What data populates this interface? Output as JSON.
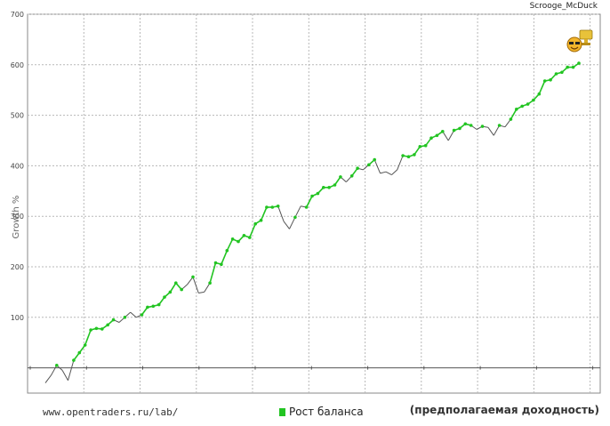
{
  "header": {
    "user_label": "Scrooge_McDuck"
  },
  "footer": {
    "url": "www.opentraders.ru/lab/",
    "legend_label": "Рост баланса",
    "note": "(предполагаемая доходность)"
  },
  "colors": {
    "series": "#22c422",
    "line": "#555555",
    "grid": "#b8b8b8",
    "axis": "#555555"
  },
  "chart_data": {
    "type": "line",
    "ylabel": "Growth %",
    "xlabel": "",
    "ylim": [
      -50,
      700
    ],
    "yticks": [
      100,
      200,
      300,
      400,
      500,
      600,
      700
    ],
    "grid": true,
    "legend": "bottom-center",
    "series": [
      {
        "name": "Рост баланса",
        "y": [
          -30,
          -15,
          5,
          -5,
          -25,
          15,
          30,
          45,
          75,
          78,
          77,
          85,
          95,
          90,
          100,
          110,
          100,
          105,
          120,
          122,
          125,
          140,
          150,
          168,
          155,
          165,
          180,
          148,
          150,
          168,
          208,
          205,
          232,
          255,
          250,
          262,
          258,
          285,
          292,
          318,
          318,
          320,
          290,
          275,
          298,
          320,
          318,
          340,
          345,
          357,
          357,
          362,
          378,
          368,
          380,
          395,
          392,
          402,
          412,
          385,
          388,
          382,
          392,
          420,
          418,
          422,
          438,
          440,
          455,
          460,
          468,
          450,
          470,
          474,
          483,
          480,
          472,
          478,
          476,
          460,
          480,
          477,
          492,
          512,
          518,
          522,
          530,
          542,
          568,
          570,
          582,
          585,
          595,
          595,
          603
        ],
        "markers": [
          2,
          5,
          6,
          7,
          8,
          9,
          10,
          11,
          12,
          14,
          17,
          18,
          19,
          20,
          21,
          22,
          23,
          24,
          26,
          29,
          30,
          31,
          32,
          33,
          34,
          35,
          36,
          37,
          38,
          39,
          40,
          41,
          44,
          46,
          47,
          48,
          49,
          50,
          51,
          52,
          54,
          55,
          57,
          58,
          63,
          64,
          65,
          66,
          67,
          68,
          69,
          70,
          72,
          73,
          74,
          75,
          77,
          80,
          82,
          83,
          84,
          85,
          86,
          87,
          88,
          89,
          90,
          91,
          92,
          93,
          94
        ]
      }
    ]
  }
}
